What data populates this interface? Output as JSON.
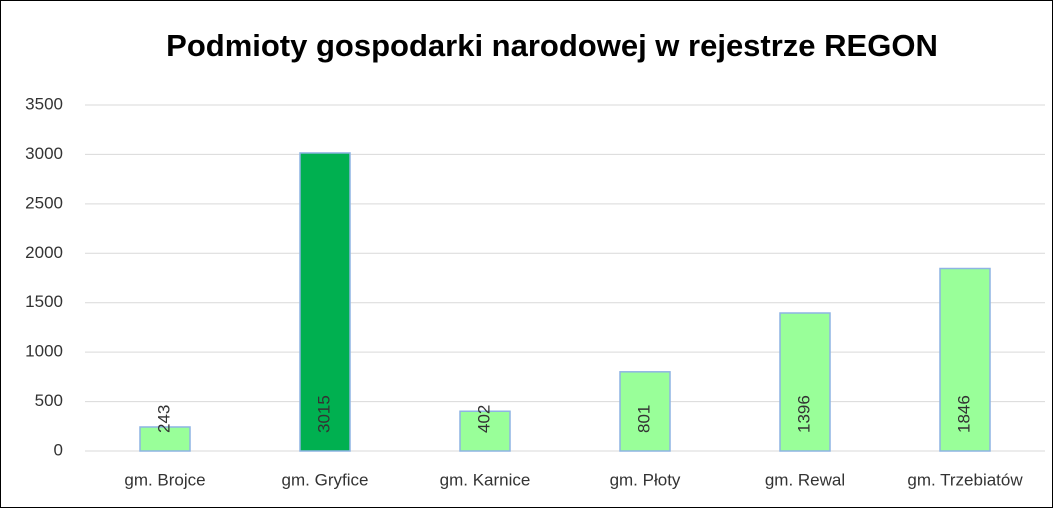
{
  "chart_data": {
    "type": "bar",
    "title": "Podmioty gospodarki narodowej w rejestrze REGON",
    "categories": [
      "gm. Brojce",
      "gm. Gryfice",
      "gm. Karnice",
      "gm. Płoty",
      "gm. Rewal",
      "gm. Trzebiatów"
    ],
    "values": [
      243,
      3015,
      402,
      801,
      1396,
      1846
    ],
    "colors": [
      "#99ff99",
      "#00b050",
      "#99ff99",
      "#99ff99",
      "#99ff99",
      "#99ff99"
    ],
    "edgecolor": "#8eb4e3",
    "ylim": [
      0,
      3500
    ],
    "yticks": [
      0,
      500,
      1000,
      1500,
      2000,
      2500,
      3000,
      3500
    ],
    "grid": true
  }
}
